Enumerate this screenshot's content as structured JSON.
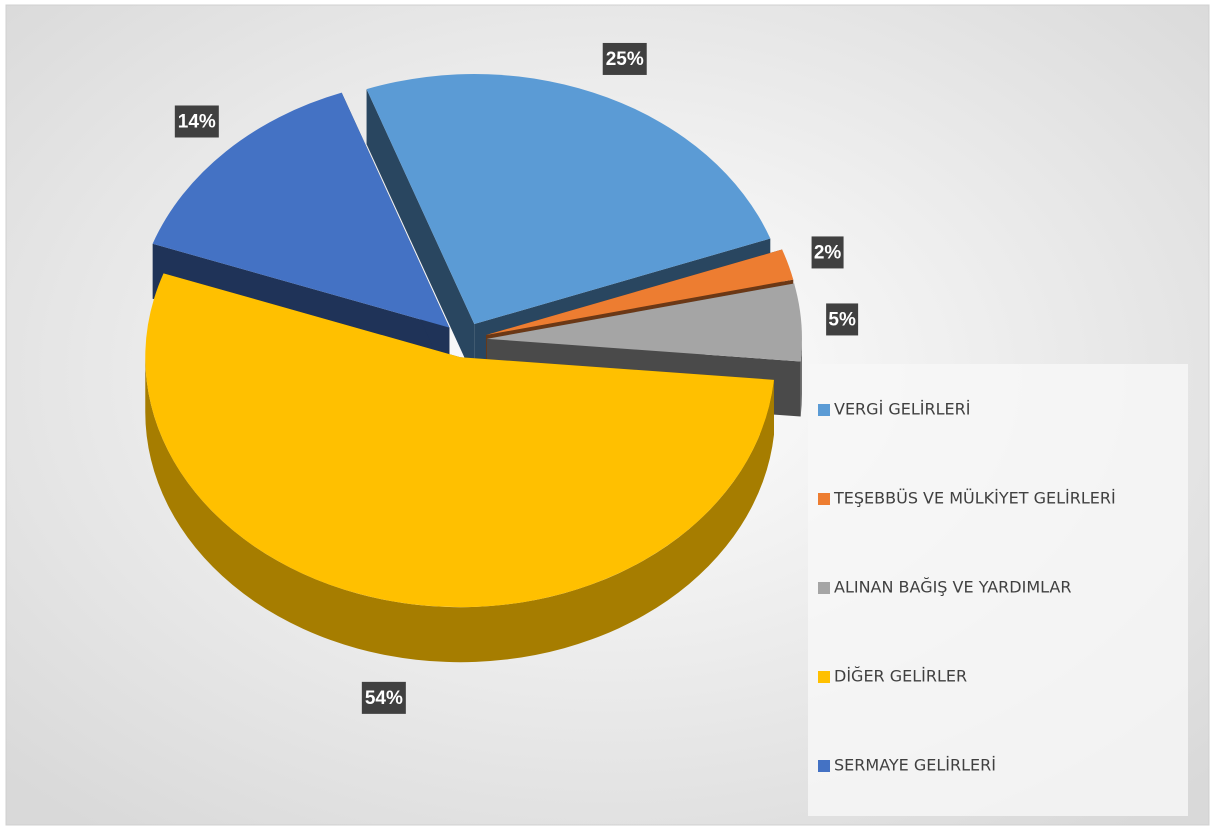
{
  "chart_data": {
    "type": "pie",
    "categories": [
      "VERGİ GELİRLERİ",
      "TEŞEBBÜS VE MÜLKİYET GELİRLERİ",
      "ALINAN BAĞIŞ VE YARDIMLAR",
      "DİĞER GELİRLER",
      "SERMAYE GELİRLERİ"
    ],
    "values": [
      25,
      2,
      5,
      54,
      14
    ],
    "value_labels": [
      "25%",
      "2%",
      "5%",
      "54%",
      "14%"
    ],
    "colors": [
      "#5b9bd5",
      "#ed7d31",
      "#a5a5a5",
      "#ffc000",
      "#4472c4"
    ],
    "legend": "right"
  }
}
